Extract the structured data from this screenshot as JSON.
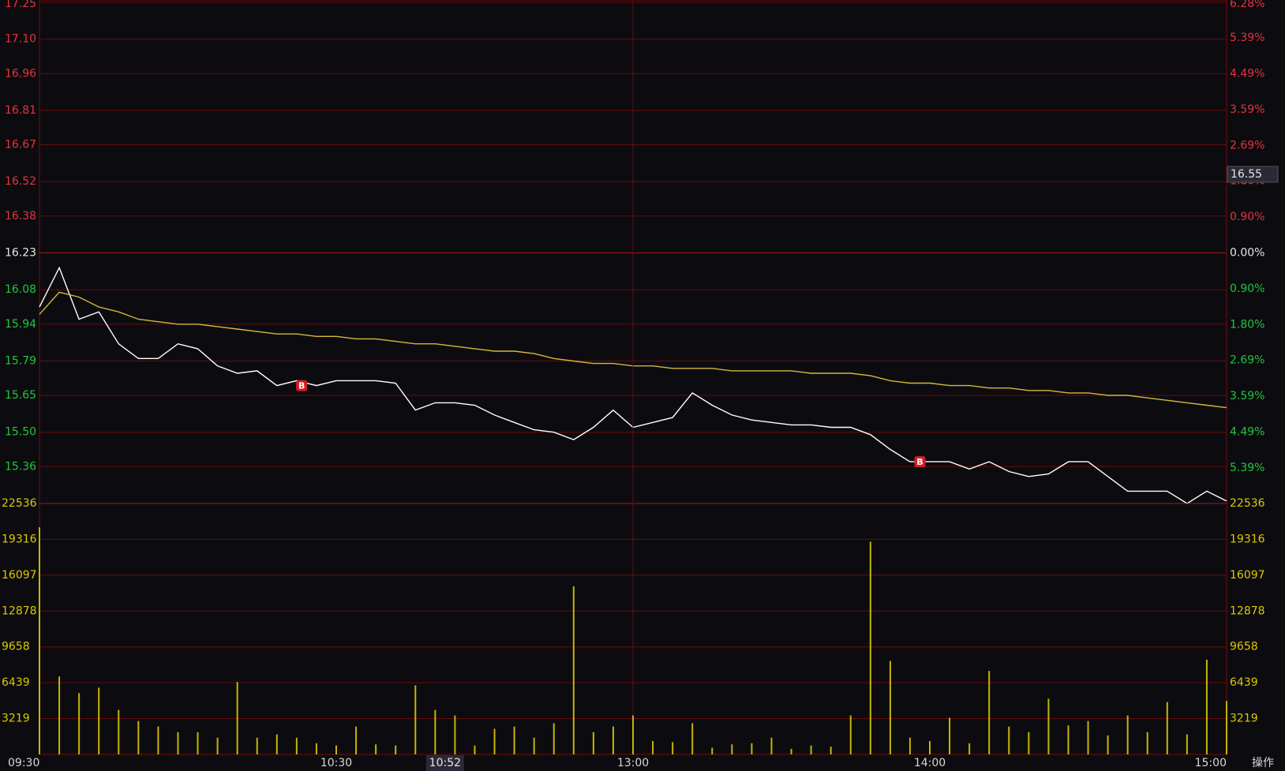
{
  "chart_data": [
    {
      "type": "line",
      "x": [
        0,
        4,
        8,
        12,
        16,
        20,
        24,
        28,
        32,
        36,
        40,
        44,
        48,
        52,
        56,
        60,
        64,
        68,
        72,
        76,
        80,
        84,
        88,
        92,
        96,
        100,
        104,
        108,
        112,
        116,
        120,
        124,
        128,
        132,
        136,
        140,
        144,
        148,
        152,
        156,
        160,
        164,
        168,
        172,
        176,
        180,
        184,
        188,
        192,
        196,
        200,
        204,
        208,
        212,
        216,
        220,
        224,
        228,
        232,
        236,
        240
      ],
      "xlim": [
        0,
        240
      ],
      "series": [
        {
          "color": "#ffffff",
          "values": [
            16.01,
            16.17,
            15.96,
            15.99,
            15.86,
            15.8,
            15.8,
            15.86,
            15.84,
            15.77,
            15.74,
            15.75,
            15.69,
            15.71,
            15.69,
            15.71,
            15.71,
            15.71,
            15.7,
            15.59,
            15.62,
            15.62,
            15.61,
            15.57,
            15.54,
            15.51,
            15.5,
            15.47,
            15.52,
            15.59,
            15.52,
            15.54,
            15.56,
            15.66,
            15.61,
            15.57,
            15.55,
            15.54,
            15.53,
            15.53,
            15.52,
            15.52,
            15.49,
            15.43,
            15.38,
            15.38,
            15.38,
            15.35,
            15.38,
            15.34,
            15.32,
            15.33,
            15.38,
            15.38,
            15.32,
            15.26,
            15.26,
            15.26,
            15.21,
            15.26,
            15.22
          ]
        },
        {
          "color": "#d4b83a",
          "values": [
            15.98,
            16.07,
            16.05,
            16.01,
            15.99,
            15.96,
            15.95,
            15.94,
            15.94,
            15.93,
            15.92,
            15.91,
            15.9,
            15.9,
            15.89,
            15.89,
            15.88,
            15.88,
            15.87,
            15.86,
            15.86,
            15.85,
            15.84,
            15.83,
            15.83,
            15.82,
            15.8,
            15.79,
            15.78,
            15.78,
            15.77,
            15.77,
            15.76,
            15.76,
            15.76,
            15.75,
            15.75,
            15.75,
            15.75,
            15.74,
            15.74,
            15.74,
            15.73,
            15.71,
            15.7,
            15.7,
            15.69,
            15.69,
            15.68,
            15.68,
            15.67,
            15.67,
            15.66,
            15.66,
            15.65,
            15.65,
            15.64,
            15.63,
            15.62,
            15.61,
            15.6
          ]
        }
      ],
      "ylim": [
        15.21,
        17.25
      ],
      "yticks": [
        17.25,
        {
          "value": 17.1,
          "label": "17.10"
        },
        16.96,
        16.81,
        16.67,
        16.52,
        16.38,
        16.23,
        16.08,
        15.94,
        15.79,
        15.65,
        {
          "value": 15.5,
          "label": "15.50"
        },
        15.36
      ],
      "y2lim": [
        -6.28,
        6.28
      ],
      "y2ticks": [
        {
          "value": 6.28,
          "label": "6.28%"
        },
        {
          "value": 5.39,
          "label": "5.39%"
        },
        {
          "value": 4.49,
          "label": "4.49%"
        },
        {
          "value": 3.59,
          "label": "3.59%"
        },
        {
          "value": 2.69,
          "label": "2.69%"
        },
        {
          "value": 1.8,
          "label": "1.80%"
        },
        {
          "value": 0.9,
          "label": "0.90%"
        },
        {
          "value": 0,
          "label": "0.00%"
        },
        {
          "value": -0.9,
          "label": "0.90%"
        },
        {
          "value": -1.8,
          "label": "1.80%"
        },
        {
          "value": -2.69,
          "label": "2.69%"
        },
        {
          "value": -3.59,
          "label": "3.59%"
        },
        {
          "value": -4.49,
          "label": "4.49%"
        },
        {
          "value": -5.39,
          "label": "5.39%"
        }
      ],
      "grid": true,
      "up_color": "#e8323c",
      "down_color": "#1ec83c",
      "flat_color": "#e6e6e6",
      "markers": [
        {
          "x": 53,
          "y": 15.69,
          "label": "B"
        },
        {
          "x": 178,
          "y": 15.38,
          "label": "B"
        }
      ],
      "crosshair_price": 16.55
    },
    {
      "type": "bar",
      "x": [
        0,
        4,
        8,
        12,
        16,
        20,
        24,
        28,
        32,
        36,
        40,
        44,
        48,
        52,
        56,
        60,
        64,
        68,
        72,
        76,
        80,
        84,
        88,
        92,
        96,
        100,
        104,
        108,
        112,
        116,
        120,
        124,
        128,
        132,
        136,
        140,
        144,
        148,
        152,
        156,
        160,
        164,
        168,
        172,
        176,
        180,
        184,
        188,
        192,
        196,
        200,
        204,
        208,
        212,
        216,
        220,
        224,
        228,
        232,
        236,
        240
      ],
      "xlim": [
        0,
        240
      ],
      "values": [
        20400,
        7000,
        5500,
        6000,
        4000,
        3000,
        2500,
        2000,
        2000,
        1500,
        6500,
        1500,
        1800,
        1500,
        1000,
        800,
        2500,
        900,
        800,
        6200,
        4000,
        3500,
        800,
        2300,
        2500,
        1500,
        2800,
        15100,
        2000,
        2500,
        3500,
        1200,
        1100,
        2800,
        600,
        900,
        1000,
        1500,
        500,
        800,
        700,
        3500,
        19100,
        8400,
        1500,
        1200,
        3300,
        1000,
        7500,
        2500,
        2000,
        5000,
        2600,
        3000,
        1700,
        3500,
        2000,
        4700,
        1800,
        8500,
        4800
      ],
      "color": "#c8b400",
      "ylim": [
        0,
        22536
      ],
      "yticks": [
        22536,
        19316,
        16097,
        12878,
        9658,
        6439,
        3219
      ],
      "xticks": [
        {
          "value": 0,
          "label": "09:30"
        },
        {
          "value": 60,
          "label": "10:30"
        },
        {
          "value": 120,
          "label": "13:00"
        },
        {
          "value": 180,
          "label": "14:00"
        },
        {
          "value": 240,
          "label": "15:00"
        }
      ],
      "crosshair_time": {
        "value": 82,
        "label": "10:52"
      },
      "grid": true,
      "corner_label": "操作"
    }
  ]
}
